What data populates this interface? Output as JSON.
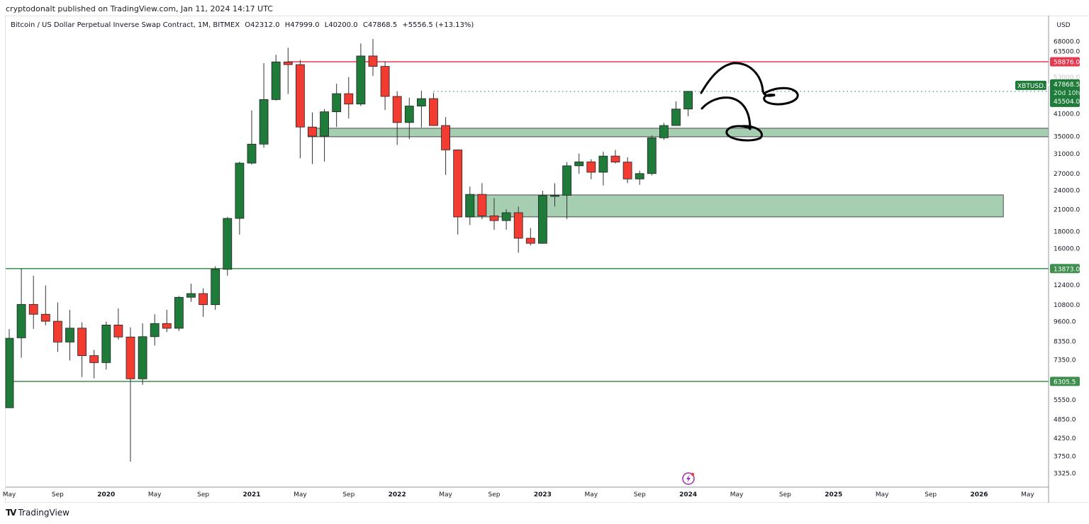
{
  "publisher_line": "cryptodonalt published on TradingView.com, Jan 11, 2024 14:17 UTC",
  "legend": {
    "symbol": "Bitcoin / US Dollar Perpetual Inverse Swap Contract, 1M, BITMEX",
    "open": "O42312.0",
    "high": "H47999.0",
    "low": "L40200.0",
    "close": "C47868.5",
    "change": "+5556.5 (+13.13%)"
  },
  "currency_label": "USD",
  "brand": "TradingView",
  "colors": {
    "up": "#1e7b3a",
    "down": "#f23c32",
    "zone": "#a5cfb0",
    "resistance": "#e53950",
    "support": "#3f8f4f",
    "drawing": "#000000",
    "lightning": "#9c27b0"
  },
  "chart_data": {
    "type": "candlestick",
    "title": "Bitcoin / US Dollar Perpetual Inverse Swap Contract, 1M, BITMEX",
    "scale": "log",
    "ylim": [
      3100,
      75000
    ],
    "xlim": [
      "2019-05",
      "2026-06"
    ],
    "y_ticks": [
      68000,
      63500,
      53000,
      41000,
      35000,
      31000,
      27000,
      24000,
      21000,
      18000,
      16000,
      12400,
      10800,
      9600,
      8350,
      7350,
      5550,
      4850,
      4250,
      3750,
      3325
    ],
    "y_tick_labels": [
      "68000.0",
      "63500.0",
      "53000.0",
      "41000.0",
      "35000.0",
      "31000.0",
      "27000.0",
      "24000.0",
      "21000.0",
      "18000.0",
      "16000.0",
      "12400.0",
      "10800.0",
      "9600.0",
      "8350.0",
      "7350.0",
      "5550.0",
      "4850.0",
      "4250.0",
      "3750.0",
      "3325.0"
    ],
    "x_ticks": [
      {
        "label": "May",
        "date": "2019-05",
        "bold": false
      },
      {
        "label": "Sep",
        "date": "2019-09",
        "bold": false
      },
      {
        "label": "2020",
        "date": "2020-01",
        "bold": true
      },
      {
        "label": "May",
        "date": "2020-05",
        "bold": false
      },
      {
        "label": "Sep",
        "date": "2020-09",
        "bold": false
      },
      {
        "label": "2021",
        "date": "2021-01",
        "bold": true
      },
      {
        "label": "May",
        "date": "2021-05",
        "bold": false
      },
      {
        "label": "Sep",
        "date": "2021-09",
        "bold": false
      },
      {
        "label": "2022",
        "date": "2022-01",
        "bold": true
      },
      {
        "label": "May",
        "date": "2022-05",
        "bold": false
      },
      {
        "label": "Sep",
        "date": "2022-09",
        "bold": false
      },
      {
        "label": "2023",
        "date": "2023-01",
        "bold": true
      },
      {
        "label": "May",
        "date": "2023-05",
        "bold": false
      },
      {
        "label": "Sep",
        "date": "2023-09",
        "bold": false
      },
      {
        "label": "2024",
        "date": "2024-01",
        "bold": true
      },
      {
        "label": "May",
        "date": "2024-05",
        "bold": false
      },
      {
        "label": "Sep",
        "date": "2024-09",
        "bold": false
      },
      {
        "label": "2025",
        "date": "2025-01",
        "bold": true
      },
      {
        "label": "May",
        "date": "2025-05",
        "bold": false
      },
      {
        "label": "Sep",
        "date": "2025-09",
        "bold": false
      },
      {
        "label": "2026",
        "date": "2026-01",
        "bold": true
      },
      {
        "label": "May",
        "date": "2026-05",
        "bold": false
      }
    ],
    "candles": [
      {
        "date": "2019-05",
        "o": 5245,
        "h": 9090,
        "l": 5245,
        "c": 8524
      },
      {
        "date": "2019-06",
        "o": 8550,
        "h": 13870,
        "l": 7440,
        "c": 10800
      },
      {
        "date": "2019-07",
        "o": 10800,
        "h": 13200,
        "l": 9100,
        "c": 10080
      },
      {
        "date": "2019-08",
        "o": 10080,
        "h": 12330,
        "l": 9330,
        "c": 9600
      },
      {
        "date": "2019-09",
        "o": 9600,
        "h": 10950,
        "l": 7750,
        "c": 8300
      },
      {
        "date": "2019-10",
        "o": 8300,
        "h": 10380,
        "l": 7300,
        "c": 9150
      },
      {
        "date": "2019-11",
        "o": 9150,
        "h": 9530,
        "l": 6500,
        "c": 7550
      },
      {
        "date": "2019-12",
        "o": 7550,
        "h": 7860,
        "l": 6440,
        "c": 7190
      },
      {
        "date": "2020-01",
        "o": 7190,
        "h": 9580,
        "l": 6850,
        "c": 9350
      },
      {
        "date": "2020-02",
        "o": 9350,
        "h": 10500,
        "l": 8450,
        "c": 8600
      },
      {
        "date": "2020-03",
        "o": 8600,
        "h": 9200,
        "l": 3600,
        "c": 6420
      },
      {
        "date": "2020-04",
        "o": 6420,
        "h": 9460,
        "l": 6160,
        "c": 8620
      },
      {
        "date": "2020-05",
        "o": 8620,
        "h": 10080,
        "l": 8100,
        "c": 9450
      },
      {
        "date": "2020-06",
        "o": 9450,
        "h": 10400,
        "l": 8900,
        "c": 9140
      },
      {
        "date": "2020-07",
        "o": 9140,
        "h": 11450,
        "l": 8970,
        "c": 11350
      },
      {
        "date": "2020-08",
        "o": 11350,
        "h": 12470,
        "l": 11000,
        "c": 11650
      },
      {
        "date": "2020-09",
        "o": 11650,
        "h": 12080,
        "l": 9900,
        "c": 10780
      },
      {
        "date": "2020-10",
        "o": 10780,
        "h": 14100,
        "l": 10400,
        "c": 13800
      },
      {
        "date": "2020-11",
        "o": 13800,
        "h": 19900,
        "l": 13200,
        "c": 19700
      },
      {
        "date": "2020-12",
        "o": 19700,
        "h": 29300,
        "l": 17600,
        "c": 28990
      },
      {
        "date": "2021-01",
        "o": 28990,
        "h": 41900,
        "l": 28700,
        "c": 33100
      },
      {
        "date": "2021-02",
        "o": 33100,
        "h": 58300,
        "l": 32300,
        "c": 45200
      },
      {
        "date": "2021-03",
        "o": 45200,
        "h": 61800,
        "l": 44900,
        "c": 58800
      },
      {
        "date": "2021-04",
        "o": 58800,
        "h": 64900,
        "l": 47000,
        "c": 57700
      },
      {
        "date": "2021-05",
        "o": 57700,
        "h": 59600,
        "l": 30000,
        "c": 37300
      },
      {
        "date": "2021-06",
        "o": 37300,
        "h": 41300,
        "l": 28800,
        "c": 35000
      },
      {
        "date": "2021-07",
        "o": 35000,
        "h": 42300,
        "l": 29300,
        "c": 41500
      },
      {
        "date": "2021-08",
        "o": 41500,
        "h": 50500,
        "l": 37300,
        "c": 47100
      },
      {
        "date": "2021-09",
        "o": 47100,
        "h": 52900,
        "l": 39600,
        "c": 43800
      },
      {
        "date": "2021-10",
        "o": 43800,
        "h": 66900,
        "l": 43200,
        "c": 61300
      },
      {
        "date": "2021-11",
        "o": 61300,
        "h": 69000,
        "l": 53300,
        "c": 57000
      },
      {
        "date": "2021-12",
        "o": 57000,
        "h": 59100,
        "l": 42000,
        "c": 46200
      },
      {
        "date": "2022-01",
        "o": 46200,
        "h": 47900,
        "l": 32900,
        "c": 38500
      },
      {
        "date": "2022-02",
        "o": 38500,
        "h": 45800,
        "l": 34300,
        "c": 43200
      },
      {
        "date": "2022-03",
        "o": 43200,
        "h": 48100,
        "l": 37200,
        "c": 45500
      },
      {
        "date": "2022-04",
        "o": 45500,
        "h": 47400,
        "l": 37600,
        "c": 37700
      },
      {
        "date": "2022-05",
        "o": 37700,
        "h": 40000,
        "l": 26700,
        "c": 31800
      },
      {
        "date": "2022-06",
        "o": 31800,
        "h": 31900,
        "l": 17600,
        "c": 19900
      },
      {
        "date": "2022-07",
        "o": 19900,
        "h": 24600,
        "l": 18800,
        "c": 23300
      },
      {
        "date": "2022-08",
        "o": 23300,
        "h": 25200,
        "l": 19600,
        "c": 20050
      },
      {
        "date": "2022-09",
        "o": 20050,
        "h": 22700,
        "l": 18200,
        "c": 19400
      },
      {
        "date": "2022-10",
        "o": 19400,
        "h": 21000,
        "l": 18200,
        "c": 20500
      },
      {
        "date": "2022-11",
        "o": 20500,
        "h": 21400,
        "l": 15500,
        "c": 17150
      },
      {
        "date": "2022-12",
        "o": 17150,
        "h": 18400,
        "l": 16300,
        "c": 16550
      },
      {
        "date": "2023-01",
        "o": 16550,
        "h": 23900,
        "l": 16500,
        "c": 23100
      },
      {
        "date": "2023-02",
        "o": 23100,
        "h": 25200,
        "l": 21400,
        "c": 23150
      },
      {
        "date": "2023-03",
        "o": 23150,
        "h": 29200,
        "l": 19600,
        "c": 28450
      },
      {
        "date": "2023-04",
        "o": 28450,
        "h": 31000,
        "l": 26900,
        "c": 29250
      },
      {
        "date": "2023-05",
        "o": 29250,
        "h": 29800,
        "l": 25900,
        "c": 27200
      },
      {
        "date": "2023-06",
        "o": 27200,
        "h": 31400,
        "l": 24800,
        "c": 30450
      },
      {
        "date": "2023-07",
        "o": 30450,
        "h": 31800,
        "l": 28900,
        "c": 29200
      },
      {
        "date": "2023-08",
        "o": 29200,
        "h": 30200,
        "l": 25200,
        "c": 25950
      },
      {
        "date": "2023-09",
        "o": 25950,
        "h": 27500,
        "l": 24900,
        "c": 26950
      },
      {
        "date": "2023-10",
        "o": 26950,
        "h": 35200,
        "l": 26600,
        "c": 34600
      },
      {
        "date": "2023-11",
        "o": 34600,
        "h": 38400,
        "l": 34100,
        "c": 37700
      },
      {
        "date": "2023-12",
        "o": 37700,
        "h": 44600,
        "l": 37600,
        "c": 42300
      },
      {
        "date": "2024-01",
        "o": 42312,
        "h": 47999,
        "l": 40200,
        "c": 47868.5
      }
    ],
    "horizontal_lines": [
      {
        "name": "resistance-line",
        "price": 58876.0,
        "label": "58876.0",
        "color": "#e53950",
        "from": "2021-04"
      },
      {
        "name": "support-line-high",
        "price": 13873.0,
        "label": "13873.0",
        "color": "#3f8f4f",
        "from": "2019-04"
      },
      {
        "name": "support-line-low",
        "price": 6305.5,
        "label": "6305.5",
        "color": "#3f8f4f",
        "from": "2019-04"
      }
    ],
    "zones": [
      {
        "name": "upper-demand-zone",
        "top": 36990,
        "bottom": 34850,
        "from": "2021-06",
        "to": "2026-07"
      },
      {
        "name": "lower-demand-zone",
        "top": 23210,
        "bottom": 19910,
        "from": "2022-07",
        "to": "2026-03"
      }
    ],
    "last_price": {
      "symbol": "XBTUSD.P",
      "price": 47868.5,
      "label": "47868.5",
      "countdown": "20d 10h",
      "extra_label": "45504.0",
      "from": "2022-04"
    }
  }
}
